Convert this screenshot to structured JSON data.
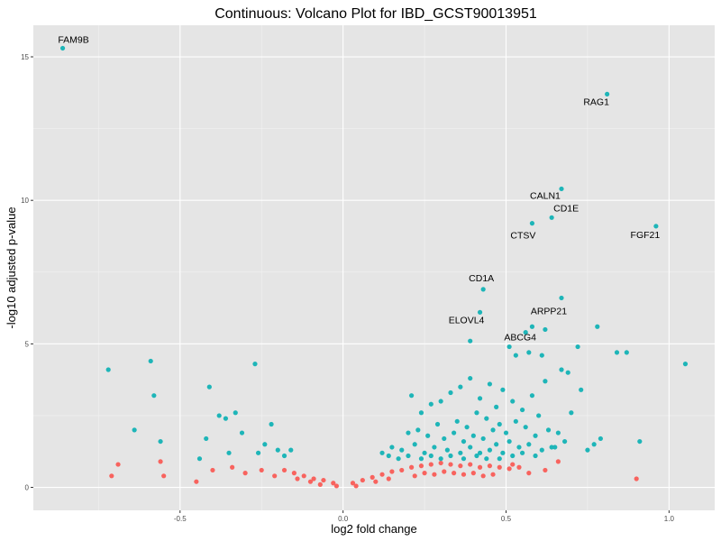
{
  "chart_data": {
    "type": "scatter",
    "title": "Continuous: Volcano Plot for IBD_GCST90013951",
    "xlabel": "log2 fold change",
    "ylabel": "-log10 adjusted p-value",
    "xlim": [
      -0.95,
      1.14
    ],
    "ylim": [
      -0.8,
      16.1
    ],
    "x_ticks": [
      -0.5,
      0.0,
      0.5,
      1.0
    ],
    "x_tick_labels": [
      "-0.5",
      "0.0",
      "0.5",
      "1.0"
    ],
    "y_ticks": [
      0,
      5,
      10,
      15
    ],
    "y_tick_labels": [
      "0",
      "5",
      "10",
      "15"
    ],
    "grid": true,
    "legend": "none",
    "colors": {
      "significant": "#1eb5b8",
      "not_significant": "#f8635e",
      "panel_background": "#e5e5e5",
      "grid_major": "#ffffff"
    },
    "series": [
      {
        "color_key": "significant",
        "points": [
          [
            -0.86,
            15.3
          ],
          [
            0.81,
            13.7
          ],
          [
            0.67,
            10.4
          ],
          [
            0.64,
            9.4
          ],
          [
            0.58,
            9.2
          ],
          [
            0.96,
            9.1
          ],
          [
            0.43,
            6.9
          ],
          [
            0.67,
            6.6
          ],
          [
            0.42,
            6.1
          ],
          [
            0.58,
            5.6
          ],
          [
            0.62,
            5.5
          ],
          [
            0.56,
            5.4
          ],
          [
            0.78,
            5.6
          ],
          [
            0.39,
            5.1
          ],
          [
            0.51,
            4.9
          ],
          [
            0.53,
            4.6
          ],
          [
            0.57,
            4.7
          ],
          [
            0.72,
            4.9
          ],
          [
            0.84,
            4.7
          ],
          [
            0.87,
            4.7
          ],
          [
            1.05,
            4.3
          ],
          [
            0.61,
            4.6
          ],
          [
            0.67,
            4.1
          ],
          [
            0.69,
            4.0
          ],
          [
            -0.72,
            4.1
          ],
          [
            -0.59,
            4.4
          ],
          [
            -0.27,
            4.3
          ],
          [
            -0.58,
            3.2
          ],
          [
            -0.41,
            3.5
          ],
          [
            -0.64,
            2.0
          ],
          [
            -0.56,
            1.6
          ],
          [
            -0.38,
            2.5
          ],
          [
            -0.36,
            2.4
          ],
          [
            -0.33,
            2.6
          ],
          [
            -0.22,
            2.2
          ],
          [
            -0.31,
            1.9
          ],
          [
            -0.42,
            1.7
          ],
          [
            -0.35,
            1.2
          ],
          [
            -0.44,
            1.0
          ],
          [
            -0.2,
            1.3
          ],
          [
            -0.26,
            1.2
          ],
          [
            -0.16,
            1.3
          ],
          [
            -0.18,
            1.1
          ],
          [
            -0.24,
            1.5
          ],
          [
            0.91,
            1.6
          ],
          [
            0.79,
            1.7
          ],
          [
            0.75,
            1.3
          ],
          [
            0.77,
            1.5
          ],
          [
            0.64,
            1.4
          ],
          [
            0.21,
            3.2
          ],
          [
            0.24,
            2.6
          ],
          [
            0.27,
            2.9
          ],
          [
            0.3,
            3.0
          ],
          [
            0.33,
            3.3
          ],
          [
            0.36,
            3.5
          ],
          [
            0.39,
            3.8
          ],
          [
            0.42,
            3.1
          ],
          [
            0.45,
            3.6
          ],
          [
            0.47,
            2.8
          ],
          [
            0.49,
            3.4
          ],
          [
            0.52,
            3.0
          ],
          [
            0.55,
            2.7
          ],
          [
            0.58,
            3.2
          ],
          [
            0.6,
            2.5
          ],
          [
            0.62,
            3.7
          ],
          [
            0.35,
            2.3
          ],
          [
            0.38,
            2.1
          ],
          [
            0.41,
            2.6
          ],
          [
            0.44,
            2.4
          ],
          [
            0.46,
            2.0
          ],
          [
            0.48,
            2.2
          ],
          [
            0.5,
            1.9
          ],
          [
            0.53,
            2.3
          ],
          [
            0.56,
            2.1
          ],
          [
            0.59,
            1.8
          ],
          [
            0.63,
            2.0
          ],
          [
            0.66,
            1.9
          ],
          [
            0.7,
            2.6
          ],
          [
            0.73,
            3.4
          ],
          [
            0.2,
            1.9
          ],
          [
            0.23,
            2.0
          ],
          [
            0.26,
            1.8
          ],
          [
            0.29,
            2.2
          ],
          [
            0.31,
            1.7
          ],
          [
            0.34,
            1.9
          ],
          [
            0.37,
            1.6
          ],
          [
            0.4,
            1.8
          ],
          [
            0.43,
            1.7
          ],
          [
            0.47,
            1.5
          ],
          [
            0.51,
            1.6
          ],
          [
            0.54,
            1.4
          ],
          [
            0.57,
            1.5
          ],
          [
            0.61,
            1.3
          ],
          [
            0.65,
            1.4
          ],
          [
            0.68,
            1.6
          ],
          [
            0.15,
            1.4
          ],
          [
            0.18,
            1.3
          ],
          [
            0.22,
            1.5
          ],
          [
            0.25,
            1.2
          ],
          [
            0.28,
            1.4
          ],
          [
            0.32,
            1.3
          ],
          [
            0.36,
            1.2
          ],
          [
            0.39,
            1.4
          ],
          [
            0.42,
            1.2
          ],
          [
            0.45,
            1.3
          ],
          [
            0.49,
            1.2
          ],
          [
            0.52,
            1.1
          ],
          [
            0.55,
            1.2
          ],
          [
            0.59,
            1.1
          ],
          [
            0.12,
            1.2
          ],
          [
            0.14,
            1.1
          ],
          [
            0.17,
            1.0
          ],
          [
            0.2,
            1.1
          ],
          [
            0.24,
            1.0
          ],
          [
            0.27,
            1.1
          ],
          [
            0.3,
            1.0
          ],
          [
            0.33,
            1.1
          ],
          [
            0.37,
            1.0
          ],
          [
            0.41,
            1.1
          ],
          [
            0.44,
            1.0
          ],
          [
            0.48,
            1.0
          ]
        ]
      },
      {
        "color_key": "not_significant",
        "points": [
          [
            -0.71,
            0.4
          ],
          [
            -0.69,
            0.8
          ],
          [
            -0.56,
            0.9
          ],
          [
            -0.55,
            0.4
          ],
          [
            -0.45,
            0.2
          ],
          [
            -0.4,
            0.6
          ],
          [
            -0.34,
            0.7
          ],
          [
            -0.3,
            0.5
          ],
          [
            -0.25,
            0.6
          ],
          [
            -0.21,
            0.4
          ],
          [
            0.9,
            0.3
          ],
          [
            0.66,
            0.9
          ],
          [
            0.52,
            0.8
          ],
          [
            0.57,
            0.5
          ],
          [
            0.62,
            0.6
          ],
          [
            -0.18,
            0.6
          ],
          [
            -0.15,
            0.5
          ],
          [
            -0.12,
            0.4
          ],
          [
            -0.09,
            0.3
          ],
          [
            -0.06,
            0.25
          ],
          [
            -0.03,
            0.15
          ],
          [
            0.03,
            0.15
          ],
          [
            0.06,
            0.25
          ],
          [
            0.09,
            0.35
          ],
          [
            0.12,
            0.45
          ],
          [
            0.15,
            0.55
          ],
          [
            0.18,
            0.6
          ],
          [
            0.21,
            0.7
          ],
          [
            0.24,
            0.75
          ],
          [
            0.27,
            0.8
          ],
          [
            0.3,
            0.85
          ],
          [
            0.33,
            0.8
          ],
          [
            0.36,
            0.75
          ],
          [
            0.39,
            0.8
          ],
          [
            0.42,
            0.7
          ],
          [
            0.45,
            0.75
          ],
          [
            0.48,
            0.7
          ],
          [
            0.51,
            0.65
          ],
          [
            0.54,
            0.7
          ],
          [
            0.22,
            0.4
          ],
          [
            0.25,
            0.5
          ],
          [
            0.28,
            0.45
          ],
          [
            0.31,
            0.55
          ],
          [
            0.34,
            0.5
          ],
          [
            0.37,
            0.45
          ],
          [
            0.4,
            0.5
          ],
          [
            0.43,
            0.4
          ],
          [
            0.46,
            0.45
          ],
          [
            0.1,
            0.2
          ],
          [
            0.14,
            0.3
          ],
          [
            -0.14,
            0.3
          ],
          [
            -0.1,
            0.2
          ],
          [
            -0.07,
            0.1
          ],
          [
            0.04,
            0.05
          ],
          [
            -0.02,
            0.05
          ]
        ]
      }
    ],
    "annotations": [
      {
        "text": "FAM9B",
        "x": -0.86,
        "y": 15.3
      },
      {
        "text": "RAG1",
        "x": 0.81,
        "y": 13.7
      },
      {
        "text": "CALN1",
        "x": 0.67,
        "y": 10.4
      },
      {
        "text": "CD1E",
        "x": 0.64,
        "y": 9.4
      },
      {
        "text": "CTSV",
        "x": 0.58,
        "y": 9.2
      },
      {
        "text": "FGF21",
        "x": 0.96,
        "y": 9.1
      },
      {
        "text": "CD1A",
        "x": 0.43,
        "y": 6.9
      },
      {
        "text": "ARPP21",
        "x": 0.67,
        "y": 6.6
      },
      {
        "text": "ELOVL4",
        "x": 0.42,
        "y": 6.1
      },
      {
        "text": "ABCG4",
        "x": 0.56,
        "y": 5.4
      }
    ]
  }
}
